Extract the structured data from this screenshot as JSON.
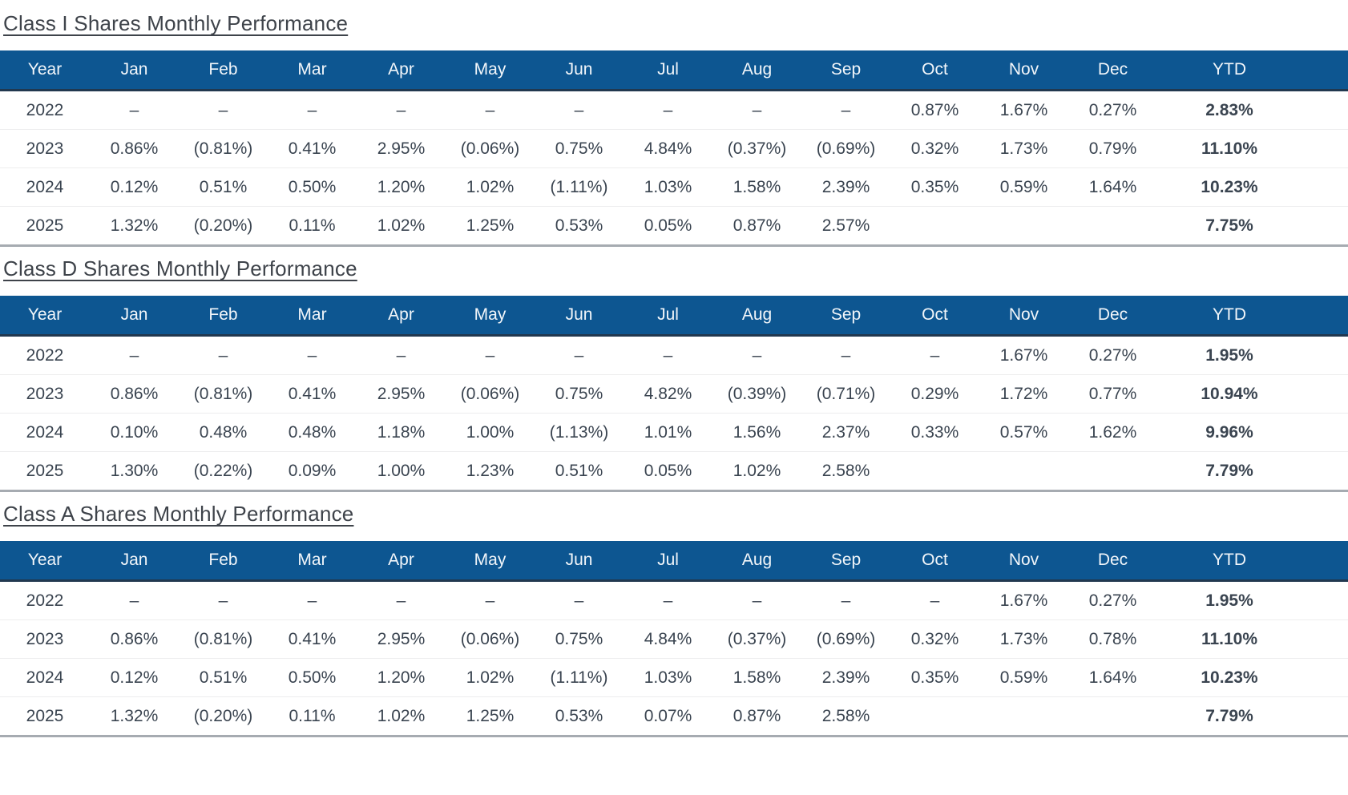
{
  "colors": {
    "header_bg": "#0d5691",
    "header_text": "#f2f6fa",
    "header_border_bottom": "#21384f",
    "table_bottom_border": "#a6abb1",
    "row_divider": "#ededee",
    "body_text": "#3a4450",
    "title_text": "#3e434a"
  },
  "columns": [
    "Year",
    "Jan",
    "Feb",
    "Mar",
    "Apr",
    "May",
    "Jun",
    "Jul",
    "Aug",
    "Sep",
    "Oct",
    "Nov",
    "Dec",
    "YTD"
  ],
  "tables": [
    {
      "title": "Class I Shares Monthly Performance",
      "rows": [
        {
          "year": "2022",
          "values": [
            "–",
            "–",
            "–",
            "–",
            "–",
            "–",
            "–",
            "–",
            "–",
            "0.87%",
            "1.67%",
            "0.27%"
          ],
          "ytd": "2.83%"
        },
        {
          "year": "2023",
          "values": [
            "0.86%",
            "(0.81%)",
            "0.41%",
            "2.95%",
            "(0.06%)",
            "0.75%",
            "4.84%",
            "(0.37%)",
            "(0.69%)",
            "0.32%",
            "1.73%",
            "0.79%"
          ],
          "ytd": "11.10%"
        },
        {
          "year": "2024",
          "values": [
            "0.12%",
            "0.51%",
            "0.50%",
            "1.20%",
            "1.02%",
            "(1.11%)",
            "1.03%",
            "1.58%",
            "2.39%",
            "0.35%",
            "0.59%",
            "1.64%"
          ],
          "ytd": "10.23%"
        },
        {
          "year": "2025",
          "values": [
            "1.32%",
            "(0.20%)",
            "0.11%",
            "1.02%",
            "1.25%",
            "0.53%",
            "0.05%",
            "0.87%",
            "2.57%",
            "",
            "",
            ""
          ],
          "ytd": "7.75%"
        }
      ]
    },
    {
      "title": "Class D Shares Monthly Performance",
      "rows": [
        {
          "year": "2022",
          "values": [
            "–",
            "–",
            "–",
            "–",
            "–",
            "–",
            "–",
            "–",
            "–",
            "–",
            "1.67%",
            "0.27%"
          ],
          "ytd": "1.95%"
        },
        {
          "year": "2023",
          "values": [
            "0.86%",
            "(0.81%)",
            "0.41%",
            "2.95%",
            "(0.06%)",
            "0.75%",
            "4.82%",
            "(0.39%)",
            "(0.71%)",
            "0.29%",
            "1.72%",
            "0.77%"
          ],
          "ytd": "10.94%"
        },
        {
          "year": "2024",
          "values": [
            "0.10%",
            "0.48%",
            "0.48%",
            "1.18%",
            "1.00%",
            "(1.13%)",
            "1.01%",
            "1.56%",
            "2.37%",
            "0.33%",
            "0.57%",
            "1.62%"
          ],
          "ytd": "9.96%"
        },
        {
          "year": "2025",
          "values": [
            "1.30%",
            "(0.22%)",
            "0.09%",
            "1.00%",
            "1.23%",
            "0.51%",
            "0.05%",
            "1.02%",
            "2.58%",
            "",
            "",
            ""
          ],
          "ytd": "7.79%"
        }
      ]
    },
    {
      "title": "Class A Shares Monthly Performance",
      "rows": [
        {
          "year": "2022",
          "values": [
            "–",
            "–",
            "–",
            "–",
            "–",
            "–",
            "–",
            "–",
            "–",
            "–",
            "1.67%",
            "0.27%"
          ],
          "ytd": "1.95%"
        },
        {
          "year": "2023",
          "values": [
            "0.86%",
            "(0.81%)",
            "0.41%",
            "2.95%",
            "(0.06%)",
            "0.75%",
            "4.84%",
            "(0.37%)",
            "(0.69%)",
            "0.32%",
            "1.73%",
            "0.78%"
          ],
          "ytd": "11.10%"
        },
        {
          "year": "2024",
          "values": [
            "0.12%",
            "0.51%",
            "0.50%",
            "1.20%",
            "1.02%",
            "(1.11%)",
            "1.03%",
            "1.58%",
            "2.39%",
            "0.35%",
            "0.59%",
            "1.64%"
          ],
          "ytd": "10.23%"
        },
        {
          "year": "2025",
          "values": [
            "1.32%",
            "(0.20%)",
            "0.11%",
            "1.02%",
            "1.25%",
            "0.53%",
            "0.07%",
            "0.87%",
            "2.58%",
            "",
            "",
            ""
          ],
          "ytd": "7.79%"
        }
      ]
    }
  ]
}
